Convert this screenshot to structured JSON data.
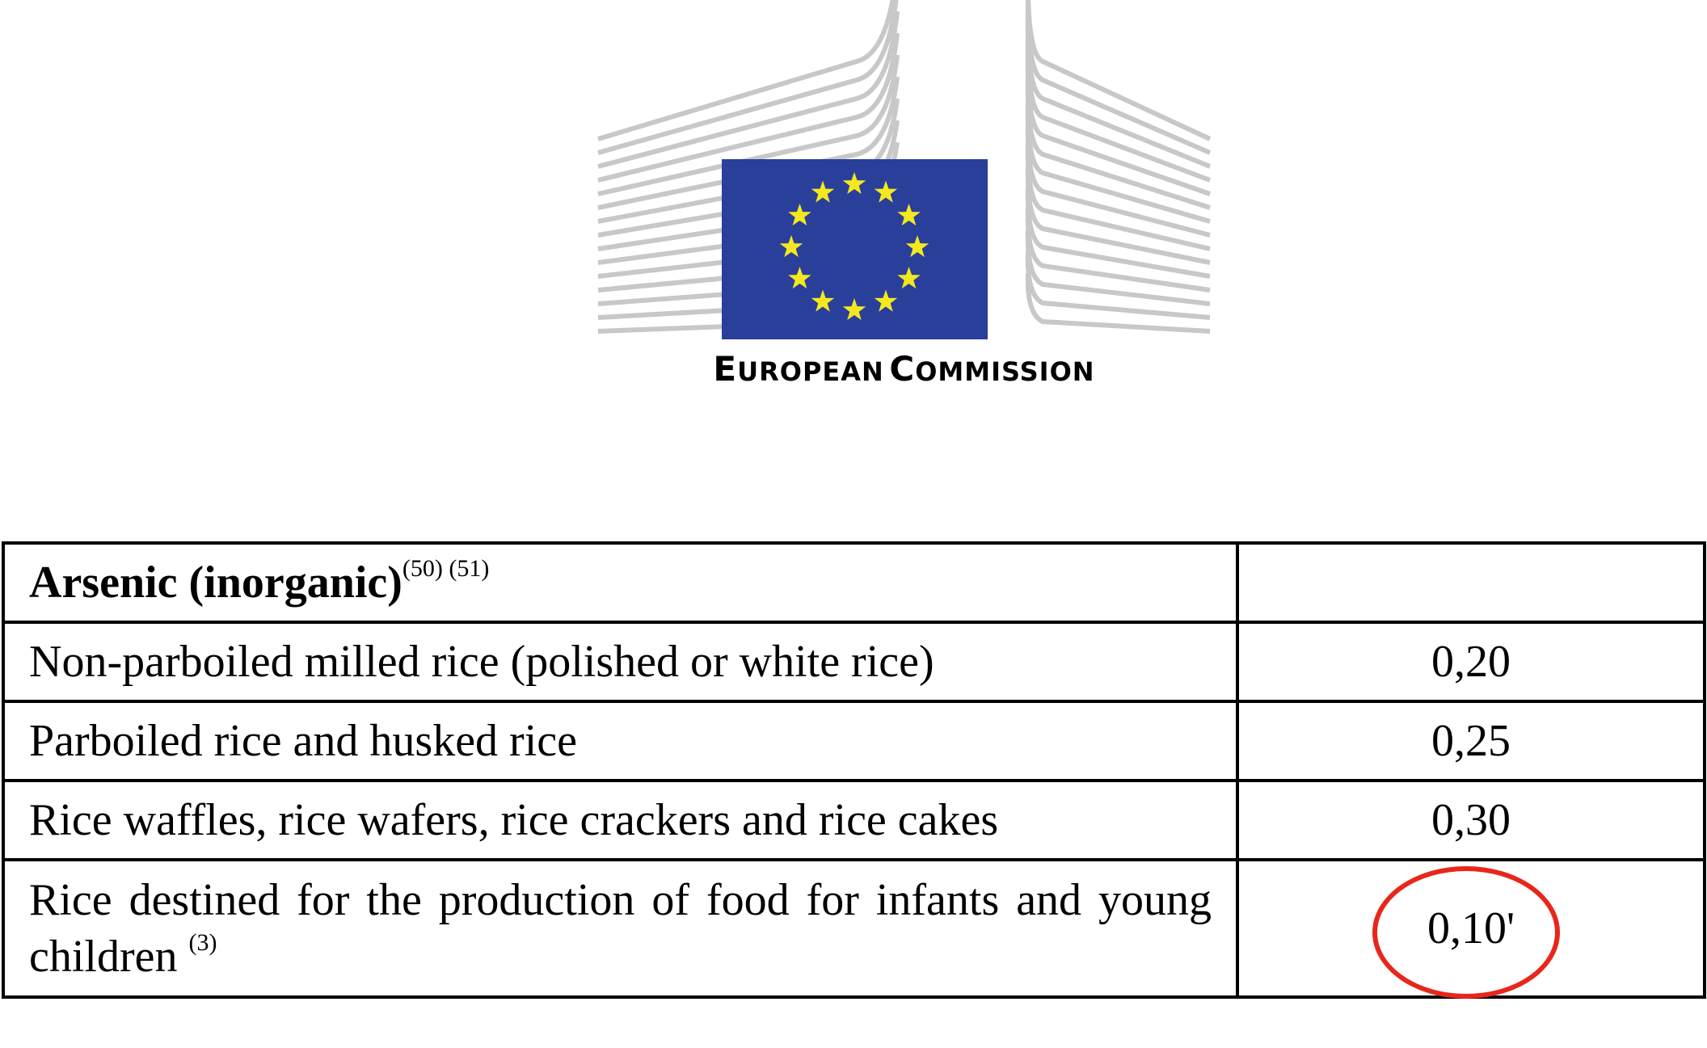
{
  "logo": {
    "org_name_first_initial": "E",
    "org_name_first_rest": "UROPEAN",
    "org_name_second_initial": "C",
    "org_name_second_rest": "OMMISSION",
    "flag_color": "#2a3f9a",
    "star_color": "#f4e81f",
    "stripe_color": "#c8c8c8",
    "icon": "eu-flag-icon"
  },
  "table": {
    "header": {
      "title": "Arsenic (inorganic)",
      "footnotes": "(50) (51)",
      "value": ""
    },
    "rows": [
      {
        "product": "Non-parboiled milled rice (polished or white rice)",
        "value": "0,20"
      },
      {
        "product": "Parboiled rice and husked rice",
        "value": "0,25"
      },
      {
        "product": "Rice waffles, rice wafers, rice crackers and rice cakes",
        "value": "0,30"
      },
      {
        "product": "Rice destined for the production of food for infants and young children",
        "footnote": "(3)",
        "value": "0,10'"
      }
    ]
  },
  "annotation": {
    "color": "#e8261b",
    "highlighted_value": "0,10'"
  }
}
